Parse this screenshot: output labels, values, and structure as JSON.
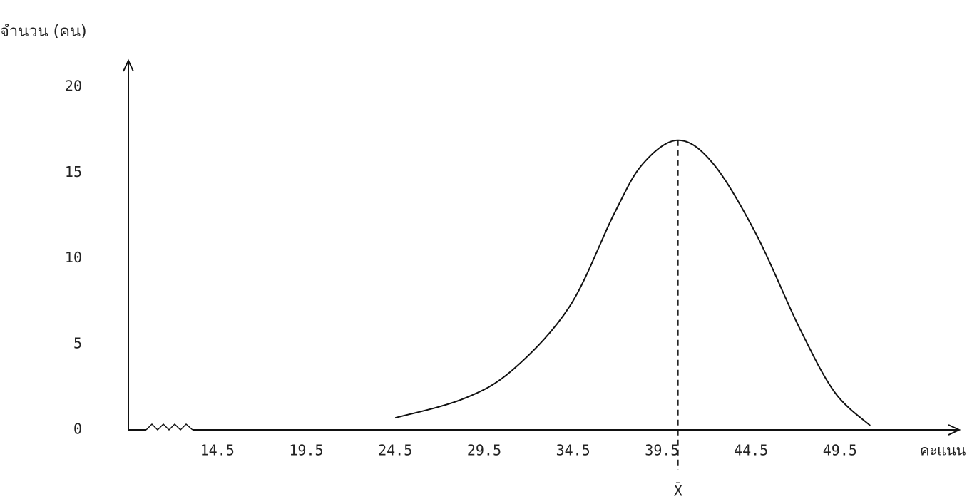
{
  "chart_data": {
    "type": "line",
    "y_label": "จำนวน (คน)",
    "x_label": "คะแนน",
    "x": [
      24.5,
      28.3,
      31.1,
      34.3,
      36.8,
      38.4,
      40.4,
      42.4,
      44.8,
      47.2,
      49.2,
      51.2
    ],
    "series": [
      {
        "color": "#111111",
        "values": [
          0.7,
          1.8,
          3.5,
          7.2,
          12.6,
          15.5,
          16.9,
          15.5,
          11.4,
          6,
          2.2,
          0.25
        ]
      }
    ],
    "xlim": [
      9.5,
      56
    ],
    "xticks": [
      14.5,
      19.5,
      24.5,
      29.5,
      34.5,
      39.5,
      44.5,
      49.5
    ],
    "ylim": [
      0,
      20.8
    ],
    "yticks": [
      0,
      5,
      10,
      15,
      20
    ],
    "mean": {
      "x": 40.4,
      "label": "X̄"
    }
  }
}
